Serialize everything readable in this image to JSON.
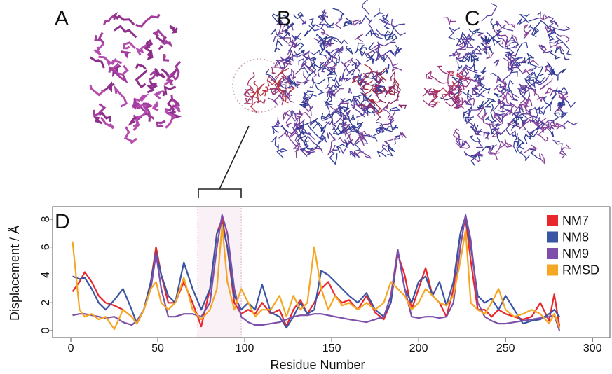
{
  "panels": {
    "a": "A",
    "b": "B",
    "c": "C"
  },
  "chart_data": {
    "type": "line",
    "panel_label": "D",
    "x_label": "Residue Number",
    "y_label": "Displacement  / Å",
    "xlim": [
      -10.5,
      310
    ],
    "ylim": [
      -0.5,
      8.9
    ],
    "xticks": [
      0,
      50,
      100,
      150,
      200,
      250,
      300
    ],
    "yticks": [
      0,
      2,
      4,
      6,
      8
    ],
    "highlight_range": [
      73,
      98
    ],
    "legend": "upper right",
    "x": [
      1,
      5,
      8,
      12,
      16,
      20,
      25,
      30,
      35,
      38,
      42,
      46,
      49,
      52,
      56,
      60,
      65,
      70,
      75,
      80,
      84,
      87,
      90,
      94,
      98,
      102,
      106,
      110,
      115,
      120,
      124,
      128,
      132,
      136,
      140,
      144,
      148,
      152,
      156,
      160,
      165,
      170,
      175,
      180,
      184,
      188,
      192,
      196,
      200,
      204,
      208,
      212,
      216,
      220,
      224,
      227,
      230,
      234,
      238,
      242,
      246,
      250,
      255,
      260,
      265,
      270,
      275,
      278,
      281
    ],
    "series": [
      {
        "name": "NM7",
        "color": "#e8262b",
        "values": [
          2.8,
          3.5,
          4.2,
          3.5,
          2.5,
          2,
          1.8,
          1.5,
          1,
          0.5,
          1.5,
          3.5,
          6,
          4,
          2,
          2,
          3.5,
          2,
          0.3,
          3,
          7,
          8,
          6,
          2,
          1.2,
          1.5,
          1.2,
          2,
          1.2,
          1.5,
          0.3,
          1.5,
          2.2,
          1.2,
          2,
          3,
          3.5,
          2.5,
          2,
          2.2,
          1.5,
          2.5,
          1.3,
          0.8,
          2,
          5.5,
          4,
          1.5,
          3,
          4.5,
          2.5,
          2,
          1,
          3,
          7,
          8,
          5,
          1.5,
          1.5,
          1,
          1.5,
          1.2,
          1,
          0.8,
          1,
          2,
          0.7,
          2.6,
          0.3
        ]
      },
      {
        "name": "NM8",
        "color": "#3a55a4",
        "values": [
          3.9,
          3.7,
          3.8,
          3,
          2,
          1.5,
          2.2,
          3,
          1.5,
          0.5,
          1.5,
          3.5,
          5.6,
          4,
          2.5,
          2,
          4.9,
          3,
          1.5,
          3,
          7,
          7.7,
          6,
          2.5,
          1.5,
          2,
          1.5,
          3.3,
          1.3,
          1,
          0.2,
          1,
          2,
          1.2,
          1.5,
          4.3,
          4,
          3.5,
          3,
          2.5,
          2,
          2.7,
          1.5,
          1,
          2,
          5.8,
          3,
          2,
          3.5,
          3.9,
          2.5,
          3.5,
          1.8,
          3.5,
          7,
          8.2,
          6,
          2.5,
          2,
          2.3,
          1.5,
          2.5,
          1.5,
          0.5,
          0.7,
          0.8,
          1.2,
          1.5,
          1
        ]
      },
      {
        "name": "NM9",
        "color": "#7d4fa8",
        "values": [
          1.1,
          1.2,
          1.2,
          1.1,
          1,
          0.9,
          1,
          0.6,
          0.4,
          0.7,
          1.5,
          3,
          5.5,
          3,
          1,
          1,
          1.2,
          1.2,
          1,
          2,
          6,
          8.3,
          7,
          3,
          1,
          0.6,
          0.4,
          0.4,
          0.5,
          0.6,
          0.8,
          1,
          1.1,
          1.1,
          1.2,
          1.2,
          1.1,
          1,
          0.9,
          0.8,
          0.7,
          0.6,
          0.8,
          1,
          2.5,
          5.8,
          3,
          1,
          0.9,
          1,
          1,
          0.9,
          1,
          2,
          6,
          8.3,
          6.5,
          2,
          1,
          0.7,
          0.5,
          0.5,
          0.6,
          0.7,
          0.8,
          0.9,
          1,
          1.1,
          0
        ]
      },
      {
        "name": "RMSD",
        "color": "#f5a623",
        "values": [
          6.4,
          1.5,
          1,
          1.2,
          0.8,
          1,
          0.1,
          1.5,
          1,
          0.5,
          1.5,
          3,
          3.5,
          2,
          1.5,
          2,
          3.8,
          1.5,
          0.8,
          1.5,
          3,
          7.6,
          3.5,
          1.5,
          3,
          2,
          1,
          1.5,
          1.5,
          2.5,
          1,
          2.5,
          1.5,
          2,
          6,
          3,
          1.5,
          2.5,
          1.8,
          2,
          1.5,
          2,
          1.5,
          2,
          3.5,
          3,
          2.5,
          1.5,
          2,
          3,
          2.5,
          2,
          1.8,
          2.5,
          5,
          7.2,
          2,
          1.5,
          1.2,
          2,
          3,
          1.5,
          1,
          1.2,
          1.5,
          1.2,
          0.5,
          1.2,
          0.2
        ]
      }
    ]
  }
}
